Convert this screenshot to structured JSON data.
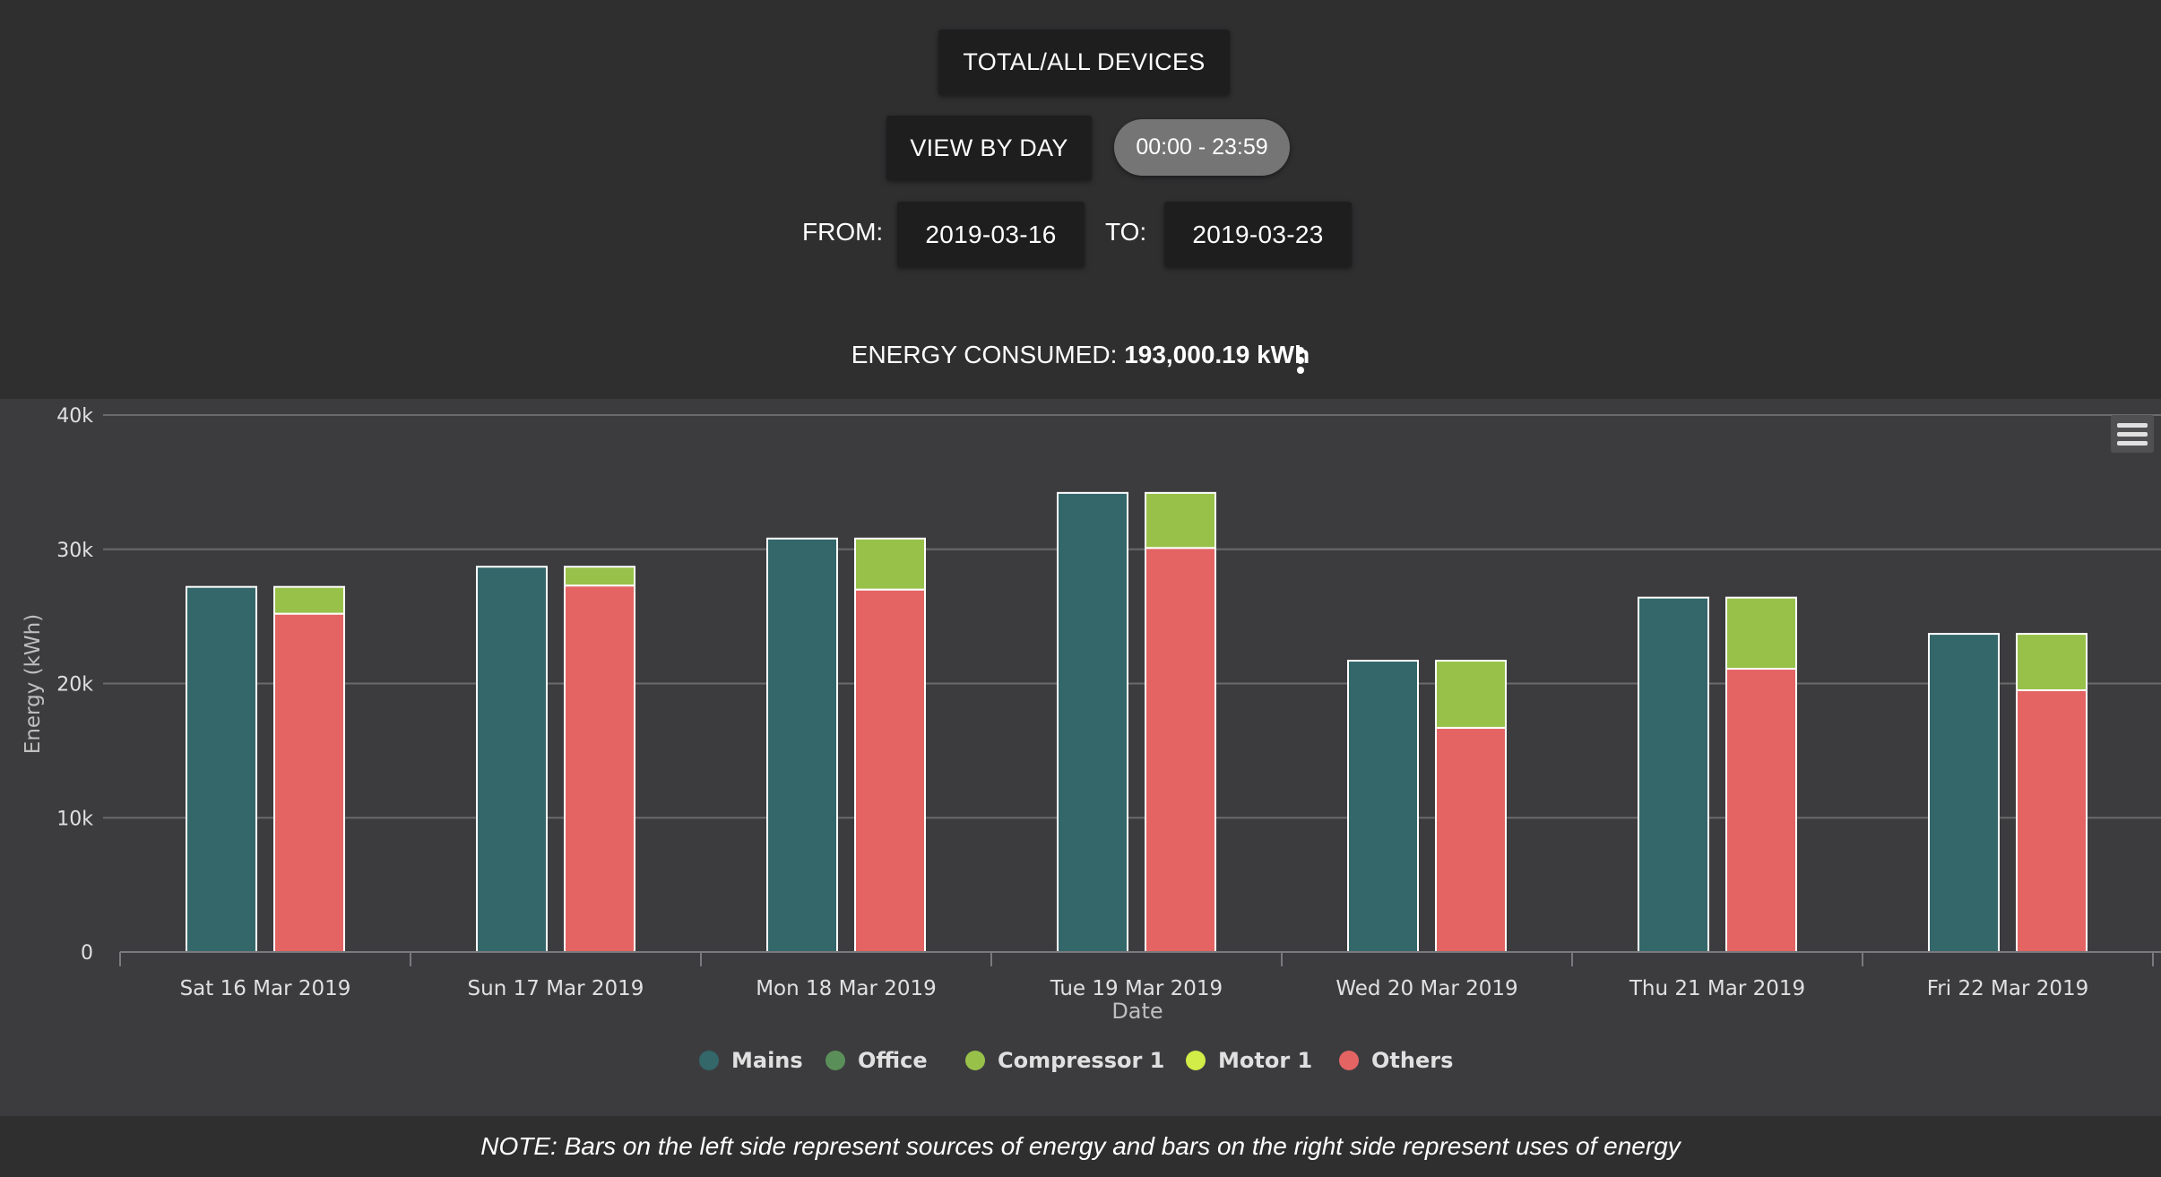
{
  "header": {
    "device_button": "TOTAL/ALL DEVICES",
    "view_button": "VIEW BY DAY",
    "time_range": "00:00 - 23:59",
    "from_label": "FROM:",
    "from_value": "2019-03-16",
    "to_label": "TO:",
    "to_value": "2019-03-23",
    "energy_label": "ENERGY CONSUMED:",
    "energy_value": "193,000.19 kWh"
  },
  "note": "NOTE: Bars on the left side represent sources of energy and bars on the right side represent uses of energy",
  "colors": {
    "Mains": "#33676a",
    "Office": "#5b8f59",
    "Compressor 1": "#98c14a",
    "Motor 1": "#d2ec48",
    "Others": "#e46464"
  },
  "chart_data": {
    "type": "bar",
    "stacked": true,
    "xlabel": "Date",
    "ylabel": "Energy (kWh)",
    "ylim": [
      0,
      40000
    ],
    "yticks": [
      0,
      10000,
      20000,
      30000,
      40000
    ],
    "ytick_labels": [
      "0",
      "10k",
      "20k",
      "30k",
      "40k"
    ],
    "categories": [
      "Sat 16 Mar 2019",
      "Sun 17 Mar 2019",
      "Mon 18 Mar 2019",
      "Tue 19 Mar 2019",
      "Wed 20 Mar 2019",
      "Thu 21 Mar 2019",
      "Fri 22 Mar 2019"
    ],
    "legend": [
      "Mains",
      "Office",
      "Compressor 1",
      "Motor 1",
      "Others"
    ],
    "legend_position": "bottom",
    "grid": true,
    "series": [
      {
        "name": "Mains",
        "stack": "sources",
        "values": [
          27200,
          28700,
          30800,
          34200,
          21700,
          26400,
          23700
        ]
      },
      {
        "name": "Office",
        "stack": "sources",
        "values": [
          0,
          0,
          0,
          0,
          0,
          0,
          0
        ]
      },
      {
        "name": "Compressor 1",
        "stack": "uses",
        "values": [
          2000,
          1400,
          3800,
          4100,
          5000,
          5300,
          4200
        ]
      },
      {
        "name": "Motor 1",
        "stack": "uses",
        "values": [
          0,
          0,
          0,
          0,
          0,
          0,
          0
        ]
      },
      {
        "name": "Others",
        "stack": "uses",
        "values": [
          25200,
          27300,
          27000,
          30100,
          16700,
          21100,
          19500
        ]
      }
    ]
  }
}
